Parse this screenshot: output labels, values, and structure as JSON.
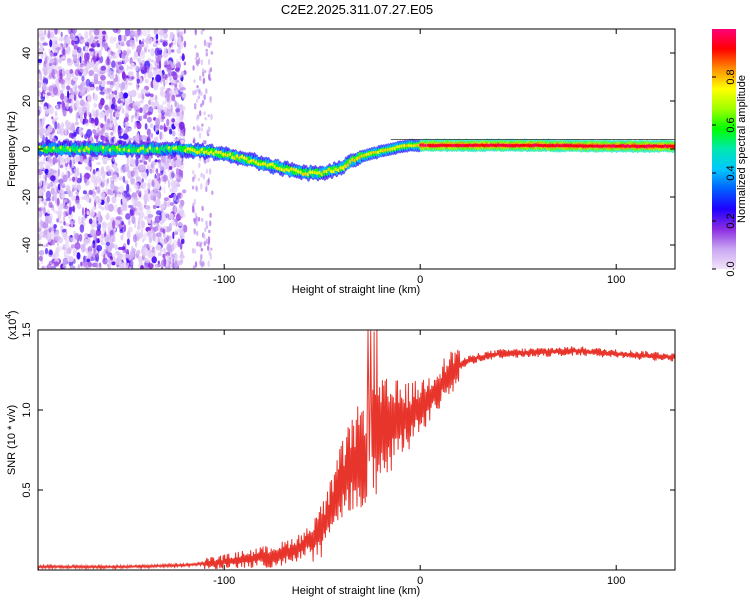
{
  "title": "C2E2.2025.311.07.27.E05",
  "chart_data": [
    {
      "type": "heatmap",
      "xlabel": "Height of straight line (km)",
      "ylabel": "Frequency (Hz)",
      "xlim": [
        -195,
        130
      ],
      "ylim": [
        -50,
        50
      ],
      "x_ticks": [
        -100,
        0,
        100
      ],
      "y_ticks": [
        -40,
        -20,
        0,
        20,
        40
      ],
      "colorbar": {
        "label": "Normalized spectral amplitude",
        "range": [
          0,
          1
        ],
        "ticks": [
          0.0,
          0.2,
          0.4,
          0.6,
          0.8
        ],
        "colormap": [
          "#f2e4fa",
          "#c9a6f2",
          "#8a2be2",
          "#2000ff",
          "#0060ff",
          "#00c8ff",
          "#00e8b0",
          "#00ff00",
          "#a0ff00",
          "#ffff00",
          "#ff9000",
          "#ff0000",
          "#ff007a"
        ]
      },
      "ridge_curve": {
        "height_km": [
          -195,
          -150,
          -125,
          -110,
          -100,
          -90,
          -80,
          -70,
          -60,
          -50,
          -45,
          -40,
          -35,
          -30,
          -25,
          -20,
          -15,
          -10,
          -5,
          0,
          20,
          60,
          100,
          130
        ],
        "frequency_hz": [
          0,
          0,
          0,
          -1,
          -2,
          -4,
          -6,
          -8,
          -10,
          -10,
          -9,
          -8,
          -5,
          -3,
          -2,
          -1,
          0,
          1,
          1.5,
          1.5,
          1.5,
          1.5,
          1.2,
          1.2
        ]
      }
    },
    {
      "type": "line",
      "xlabel": "Height of straight line (km)",
      "ylabel": "SNR (10 * v/v)",
      "y_scale_label": "(x10",
      "y_scale_exp": "4",
      "xlim": [
        -195,
        130
      ],
      "ylim": [
        0,
        1.5
      ],
      "x_ticks": [
        -100,
        0,
        100
      ],
      "y_ticks": [
        0.5,
        1.0,
        1.5
      ],
      "color": "#e8352c",
      "envelope": {
        "height_km": [
          -195,
          -150,
          -120,
          -100,
          -80,
          -70,
          -60,
          -50,
          -45,
          -40,
          -35,
          -30,
          -25,
          -20,
          -15,
          -10,
          -5,
          0,
          5,
          10,
          15,
          20,
          25,
          30,
          40,
          60,
          80,
          100,
          130
        ],
        "snr_x1e4": [
          0.02,
          0.02,
          0.03,
          0.05,
          0.08,
          0.1,
          0.15,
          0.25,
          0.38,
          0.55,
          0.65,
          0.72,
          0.8,
          0.85,
          0.9,
          0.93,
          0.97,
          1.02,
          1.08,
          1.15,
          1.22,
          1.28,
          1.31,
          1.33,
          1.35,
          1.36,
          1.37,
          1.35,
          1.33
        ]
      }
    }
  ]
}
